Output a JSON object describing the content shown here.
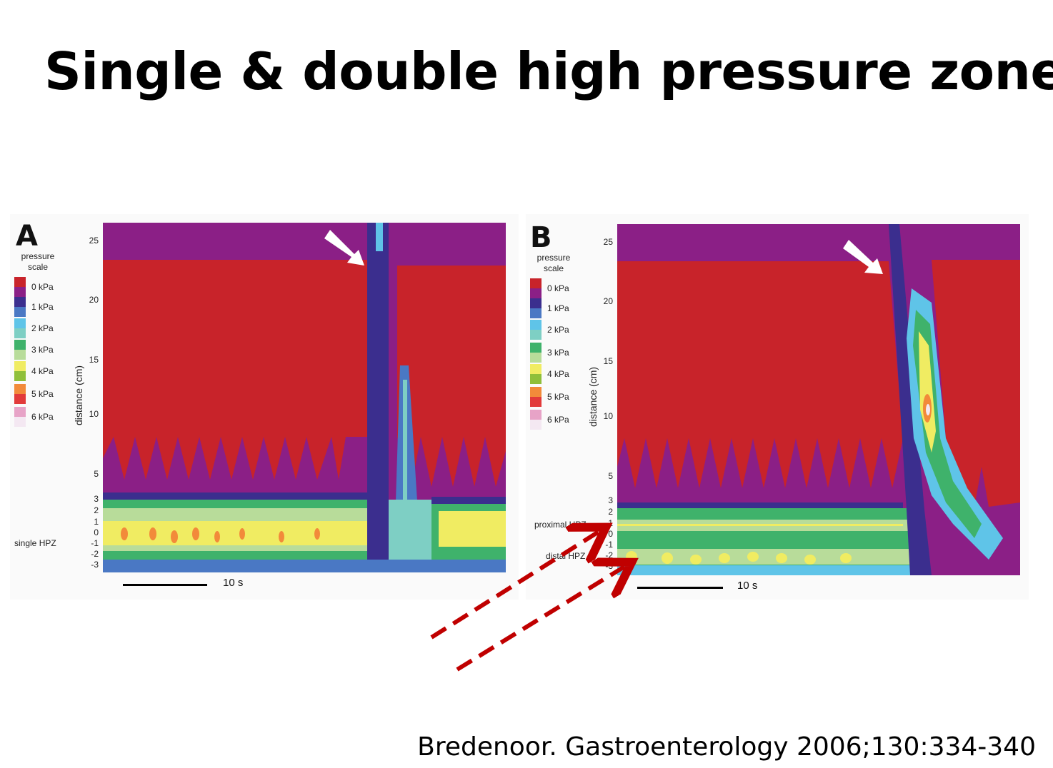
{
  "slide": {
    "title": "Single & double high pressure zone",
    "citation": "Bredenoor. Gastroenterology 2006;130:334-340"
  },
  "colors": {
    "red": "#c8232a",
    "purple": "#8b1f86",
    "dark_blue": "#3b2e8e",
    "blue": "#4a78c4",
    "light_blue": "#5fc4e8",
    "teal": "#7ecfc4",
    "green": "#3fb26b",
    "light_green": "#b8dc9a",
    "yellow": "#f0ec62",
    "orange": "#f28a3a",
    "pink": "#e7a3c7",
    "annotation_red": "#c00000"
  },
  "panels": [
    {
      "letter": "A",
      "scale_title": "pressure scale",
      "legend": [
        "0 kPa",
        "1 kPa",
        "2 kPa",
        "3 kPa",
        "4 kPa",
        "5 kPa",
        "6 kPa"
      ],
      "y_axis_title": "distance (cm)",
      "y_ticks": [
        "25",
        "20",
        "15",
        "10",
        "5",
        "3",
        "2",
        "1",
        "0",
        "-1",
        "-2",
        "-3"
      ],
      "side_labels": [
        "single HPZ"
      ],
      "scalebar_label": "10 s"
    },
    {
      "letter": "B",
      "scale_title": "pressure scale",
      "legend": [
        "0 kPa",
        "1 kPa",
        "2 kPa",
        "3 kPa",
        "4 kPa",
        "5 kPa",
        "6 kPa"
      ],
      "y_axis_title": "distance (cm)",
      "y_ticks": [
        "25",
        "20",
        "15",
        "10",
        "5",
        "3",
        "2",
        "1",
        "0",
        "-1",
        "-2",
        "-3"
      ],
      "side_labels": [
        "proximal HPZ",
        "distal HPZ"
      ],
      "scalebar_label": "10 s"
    }
  ]
}
